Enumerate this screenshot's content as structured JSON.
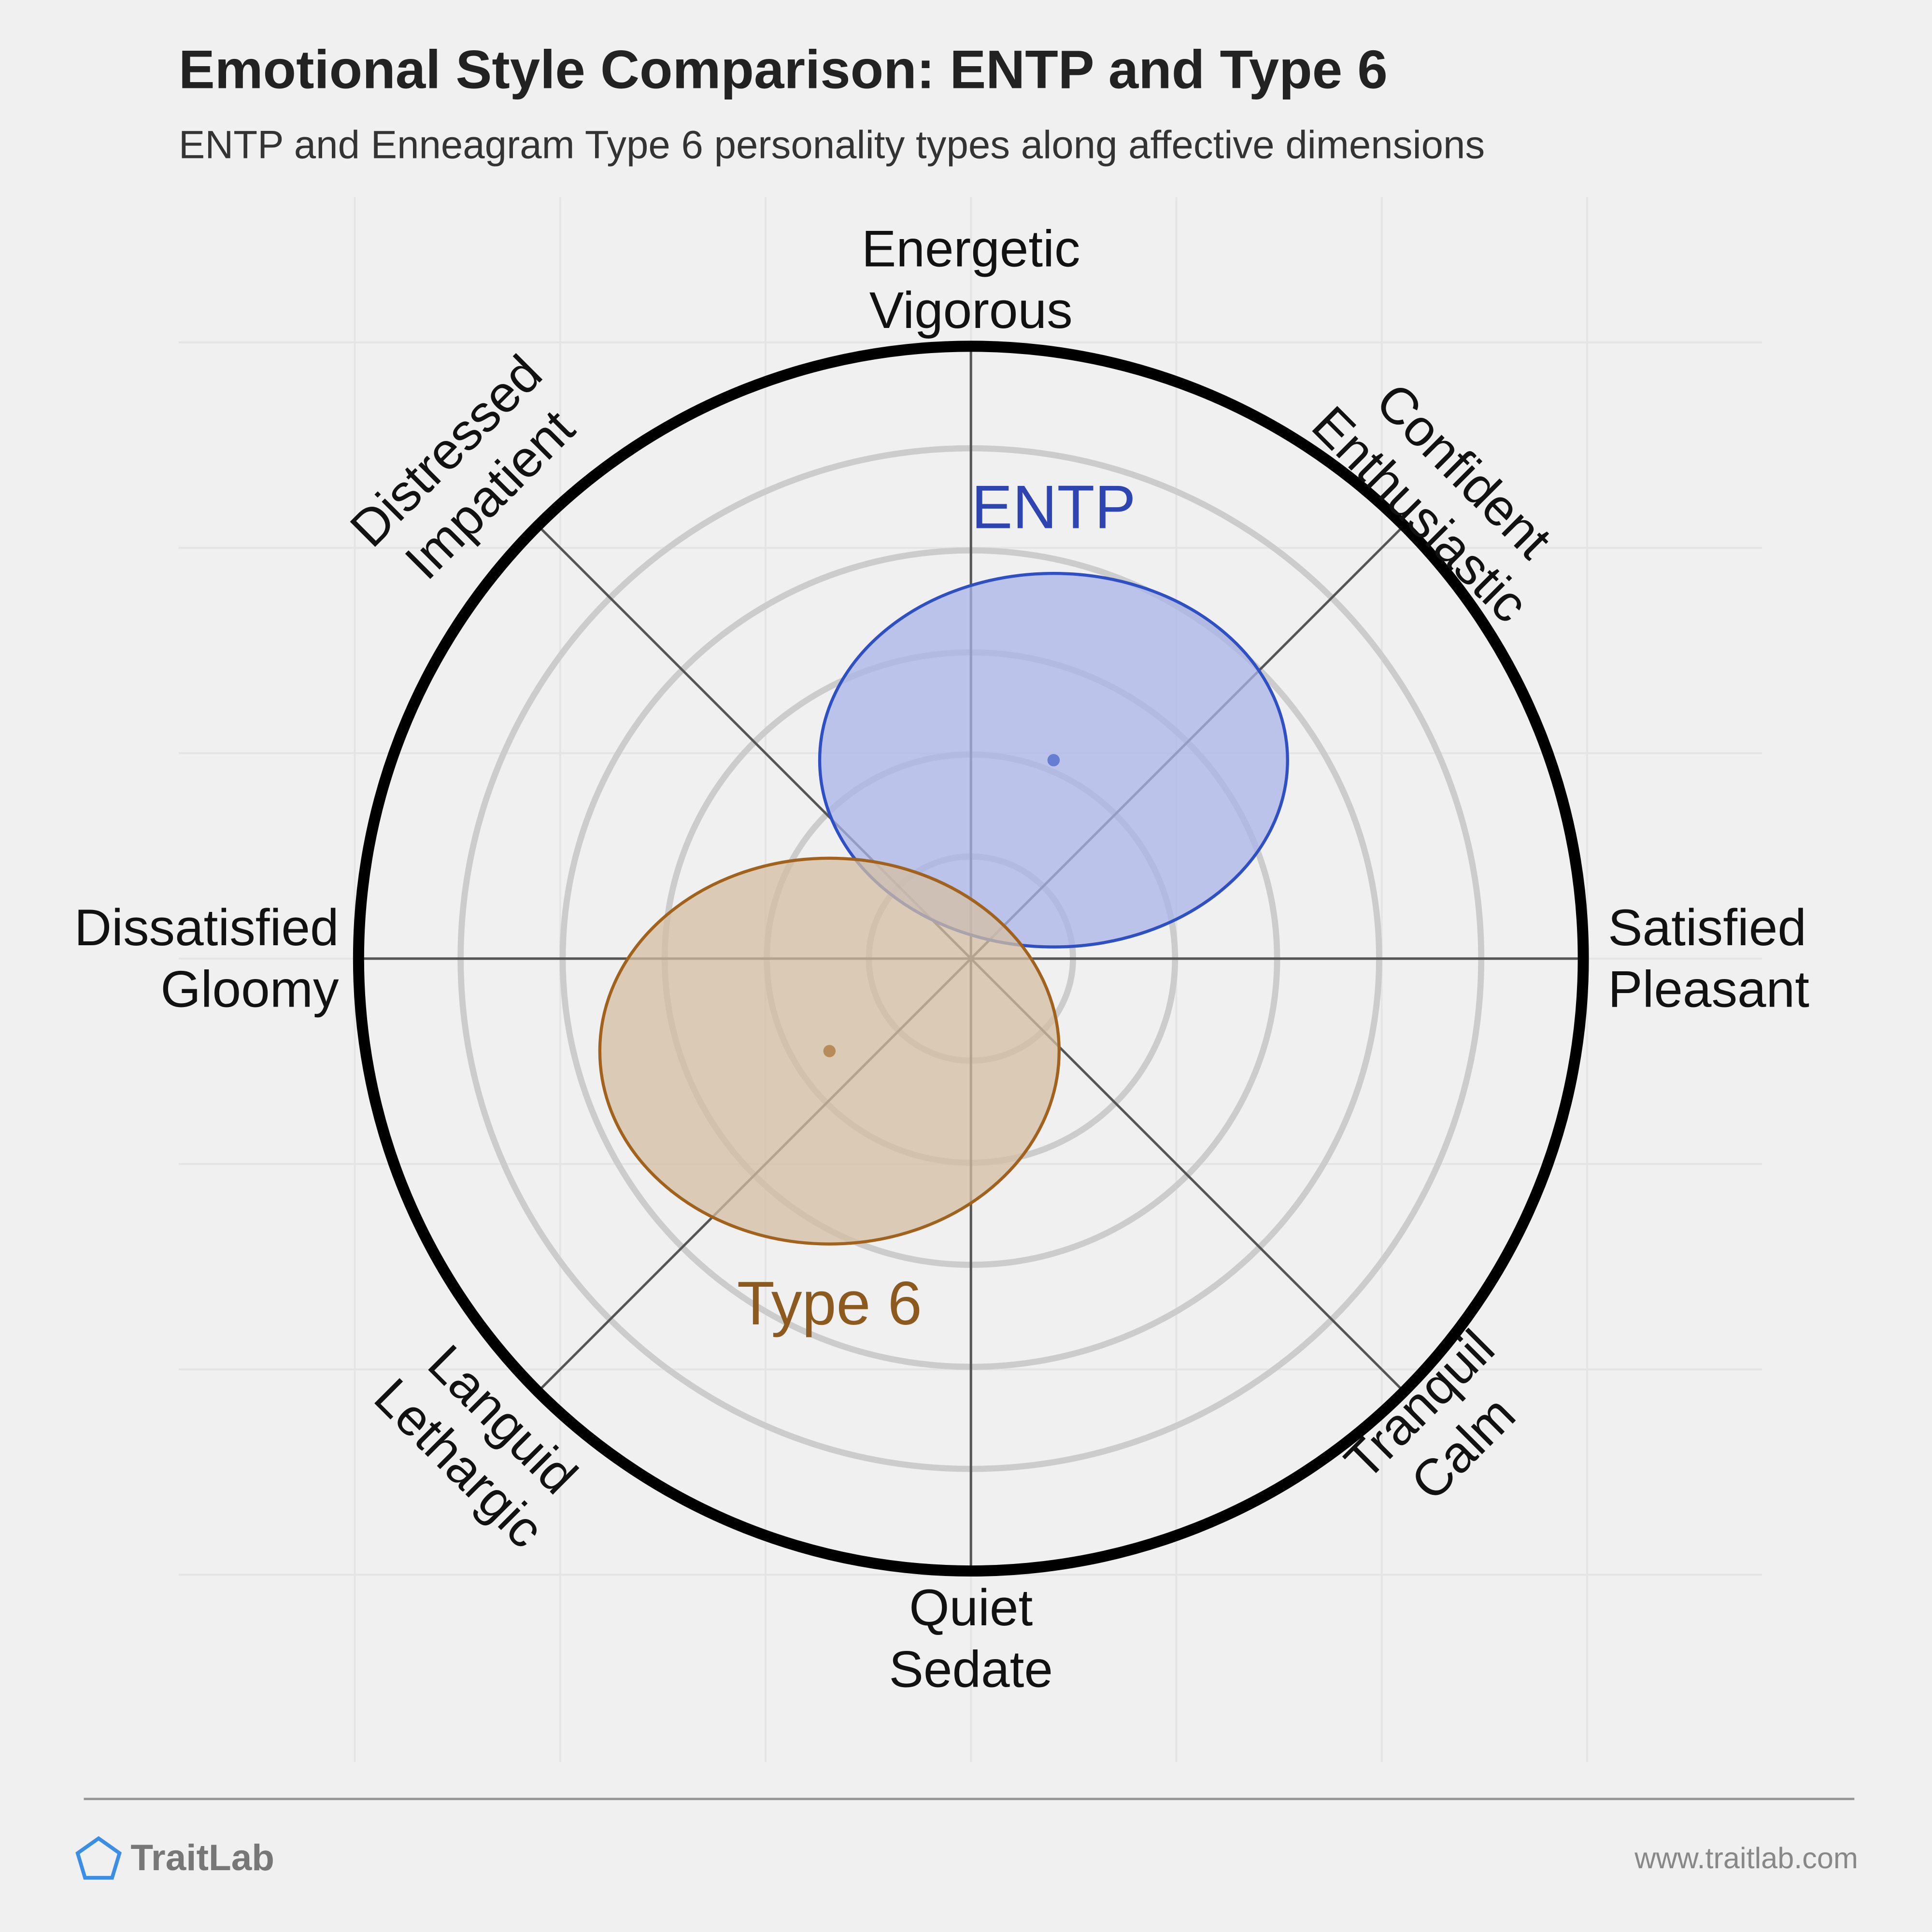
{
  "chart_data": {
    "type": "circumplex",
    "title": "Emotional Style Comparison: ENTP and Type 6",
    "subtitle": "ENTP and Enneagram Type 6 personality types along affective dimensions",
    "xlim": [
      -1,
      1
    ],
    "ylim": [
      -1,
      1
    ],
    "axis_labels": [
      [
        "Energetic",
        "Vigorous"
      ],
      [
        "Confident",
        "Enthusiastic"
      ],
      [
        "Satisfied",
        "Pleasant"
      ],
      [
        "Tranquil",
        "Calm"
      ],
      [
        "Quiet",
        "Sedate"
      ],
      [
        "Languid",
        "Lethargic"
      ],
      [
        "Dissatisfied",
        "Gloomy"
      ],
      [
        "Distressed",
        "Impatient"
      ]
    ],
    "series": [
      {
        "name": "ENTP",
        "color": "#2f4fc5",
        "fill": "#aab4e8",
        "label_color": "#2e44b0",
        "x": 0.135,
        "y": 0.324,
        "rx": 0.382,
        "ry": 0.305
      },
      {
        "name": "Type 6",
        "color": "#a0621c",
        "fill": "#d4bfa3",
        "label_color": "#8c5a1e",
        "x": -0.231,
        "y": -0.151,
        "rx": 0.375,
        "ry": 0.315
      }
    ]
  },
  "footer": {
    "brand": "TraitLab",
    "url": "www.traitlab.com"
  }
}
